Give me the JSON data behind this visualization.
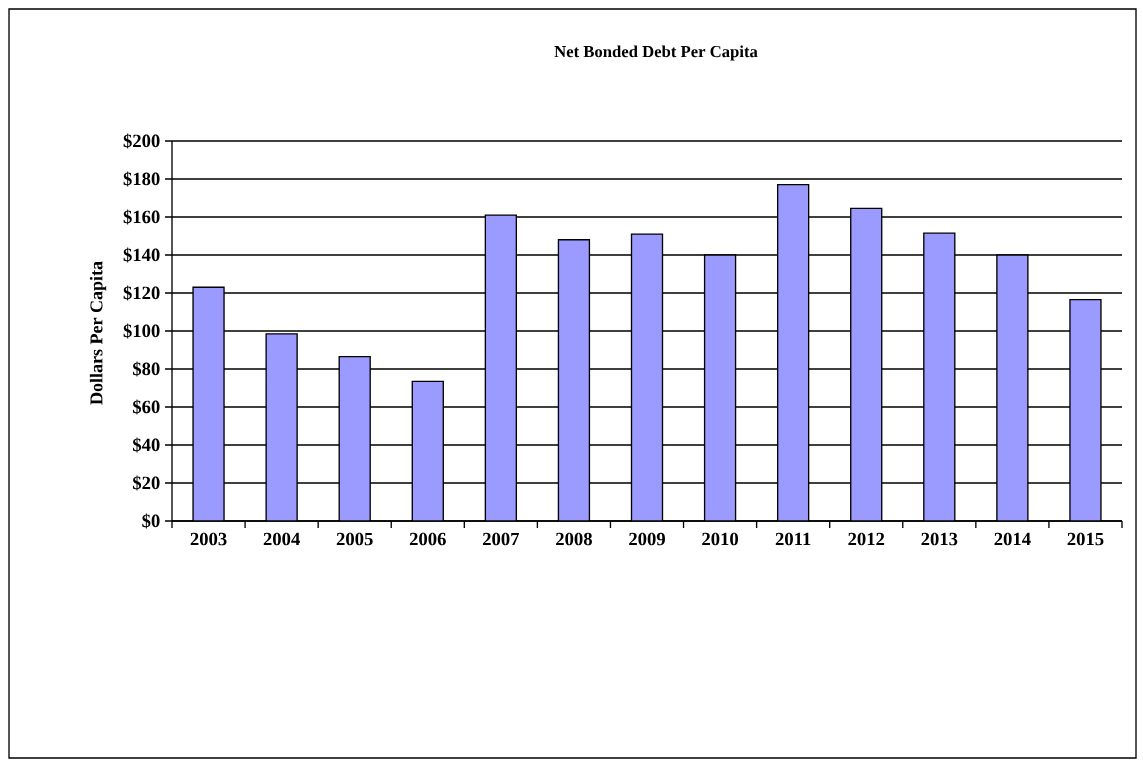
{
  "chart_data": {
    "type": "bar",
    "title": "Net Bonded Debt Per Capita",
    "ylabel": "Dollars Per Capita",
    "categories": [
      "2003",
      "2004",
      "2005",
      "2006",
      "2007",
      "2008",
      "2009",
      "2010",
      "2011",
      "2012",
      "2013",
      "2014",
      "2015"
    ],
    "values": [
      123,
      98.5,
      86.5,
      73.5,
      161,
      148,
      151,
      140,
      177,
      164.5,
      151.5,
      140,
      116.5
    ],
    "color": "#9a9aff",
    "ylim": [
      0,
      200
    ],
    "yticks": [
      {
        "value": 0,
        "label": "$0"
      },
      {
        "value": 20,
        "label": "$20"
      },
      {
        "value": 40,
        "label": "$40"
      },
      {
        "value": 60,
        "label": "$60"
      },
      {
        "value": 80,
        "label": "$80"
      },
      {
        "value": 100,
        "label": "$100"
      },
      {
        "value": 120,
        "label": "$120"
      },
      {
        "value": 140,
        "label": "$140"
      },
      {
        "value": 160,
        "label": "$160"
      },
      {
        "value": 180,
        "label": "$180"
      },
      {
        "value": 200,
        "label": "$200"
      }
    ],
    "grid": "y"
  }
}
